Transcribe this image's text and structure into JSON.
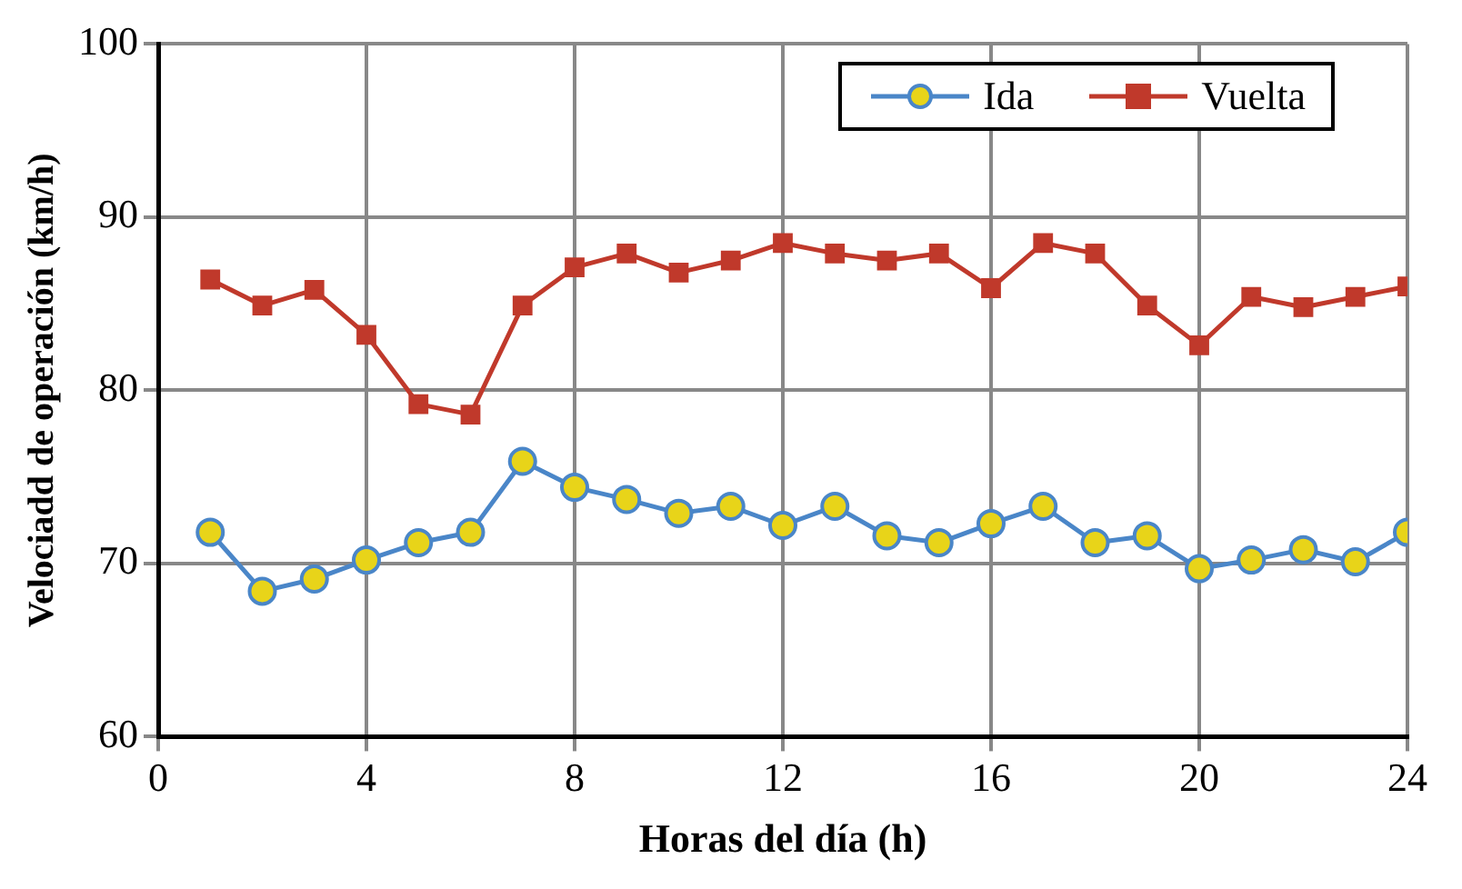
{
  "chart_data": {
    "type": "line",
    "xlabel": "Horas del día (h)",
    "ylabel": "Velociadd de operación (km/h)",
    "x": [
      1,
      2,
      3,
      4,
      5,
      6,
      7,
      8,
      9,
      10,
      11,
      12,
      13,
      14,
      15,
      16,
      17,
      18,
      19,
      20,
      21,
      22,
      23,
      24
    ],
    "xlim": [
      0,
      24
    ],
    "xticks": [
      0,
      4,
      8,
      12,
      16,
      20,
      24
    ],
    "ylim": [
      60,
      100
    ],
    "yticks": [
      60,
      70,
      80,
      90,
      100
    ],
    "grid": true,
    "legend": "top right",
    "line_style": "solid",
    "series": [
      {
        "name": "Ida",
        "color": "#4a86c8",
        "marker": "circle",
        "values": [
          71.8,
          68.4,
          69.1,
          70.2,
          71.2,
          71.8,
          75.9,
          74.4,
          73.7,
          72.9,
          73.3,
          72.2,
          73.3,
          71.6,
          71.2,
          72.3,
          73.3,
          71.2,
          71.6,
          69.7,
          70.2,
          70.8,
          70.1,
          71.8
        ]
      },
      {
        "name": "Vuelta",
        "color": "#c0392b",
        "marker": "square",
        "values": [
          86.4,
          84.9,
          85.8,
          83.2,
          79.2,
          78.6,
          84.9,
          87.1,
          87.9,
          86.8,
          87.5,
          88.5,
          87.9,
          87.5,
          87.9,
          85.9,
          88.5,
          87.9,
          84.9,
          82.6,
          85.4,
          84.8,
          85.4,
          86.0
        ]
      }
    ]
  }
}
